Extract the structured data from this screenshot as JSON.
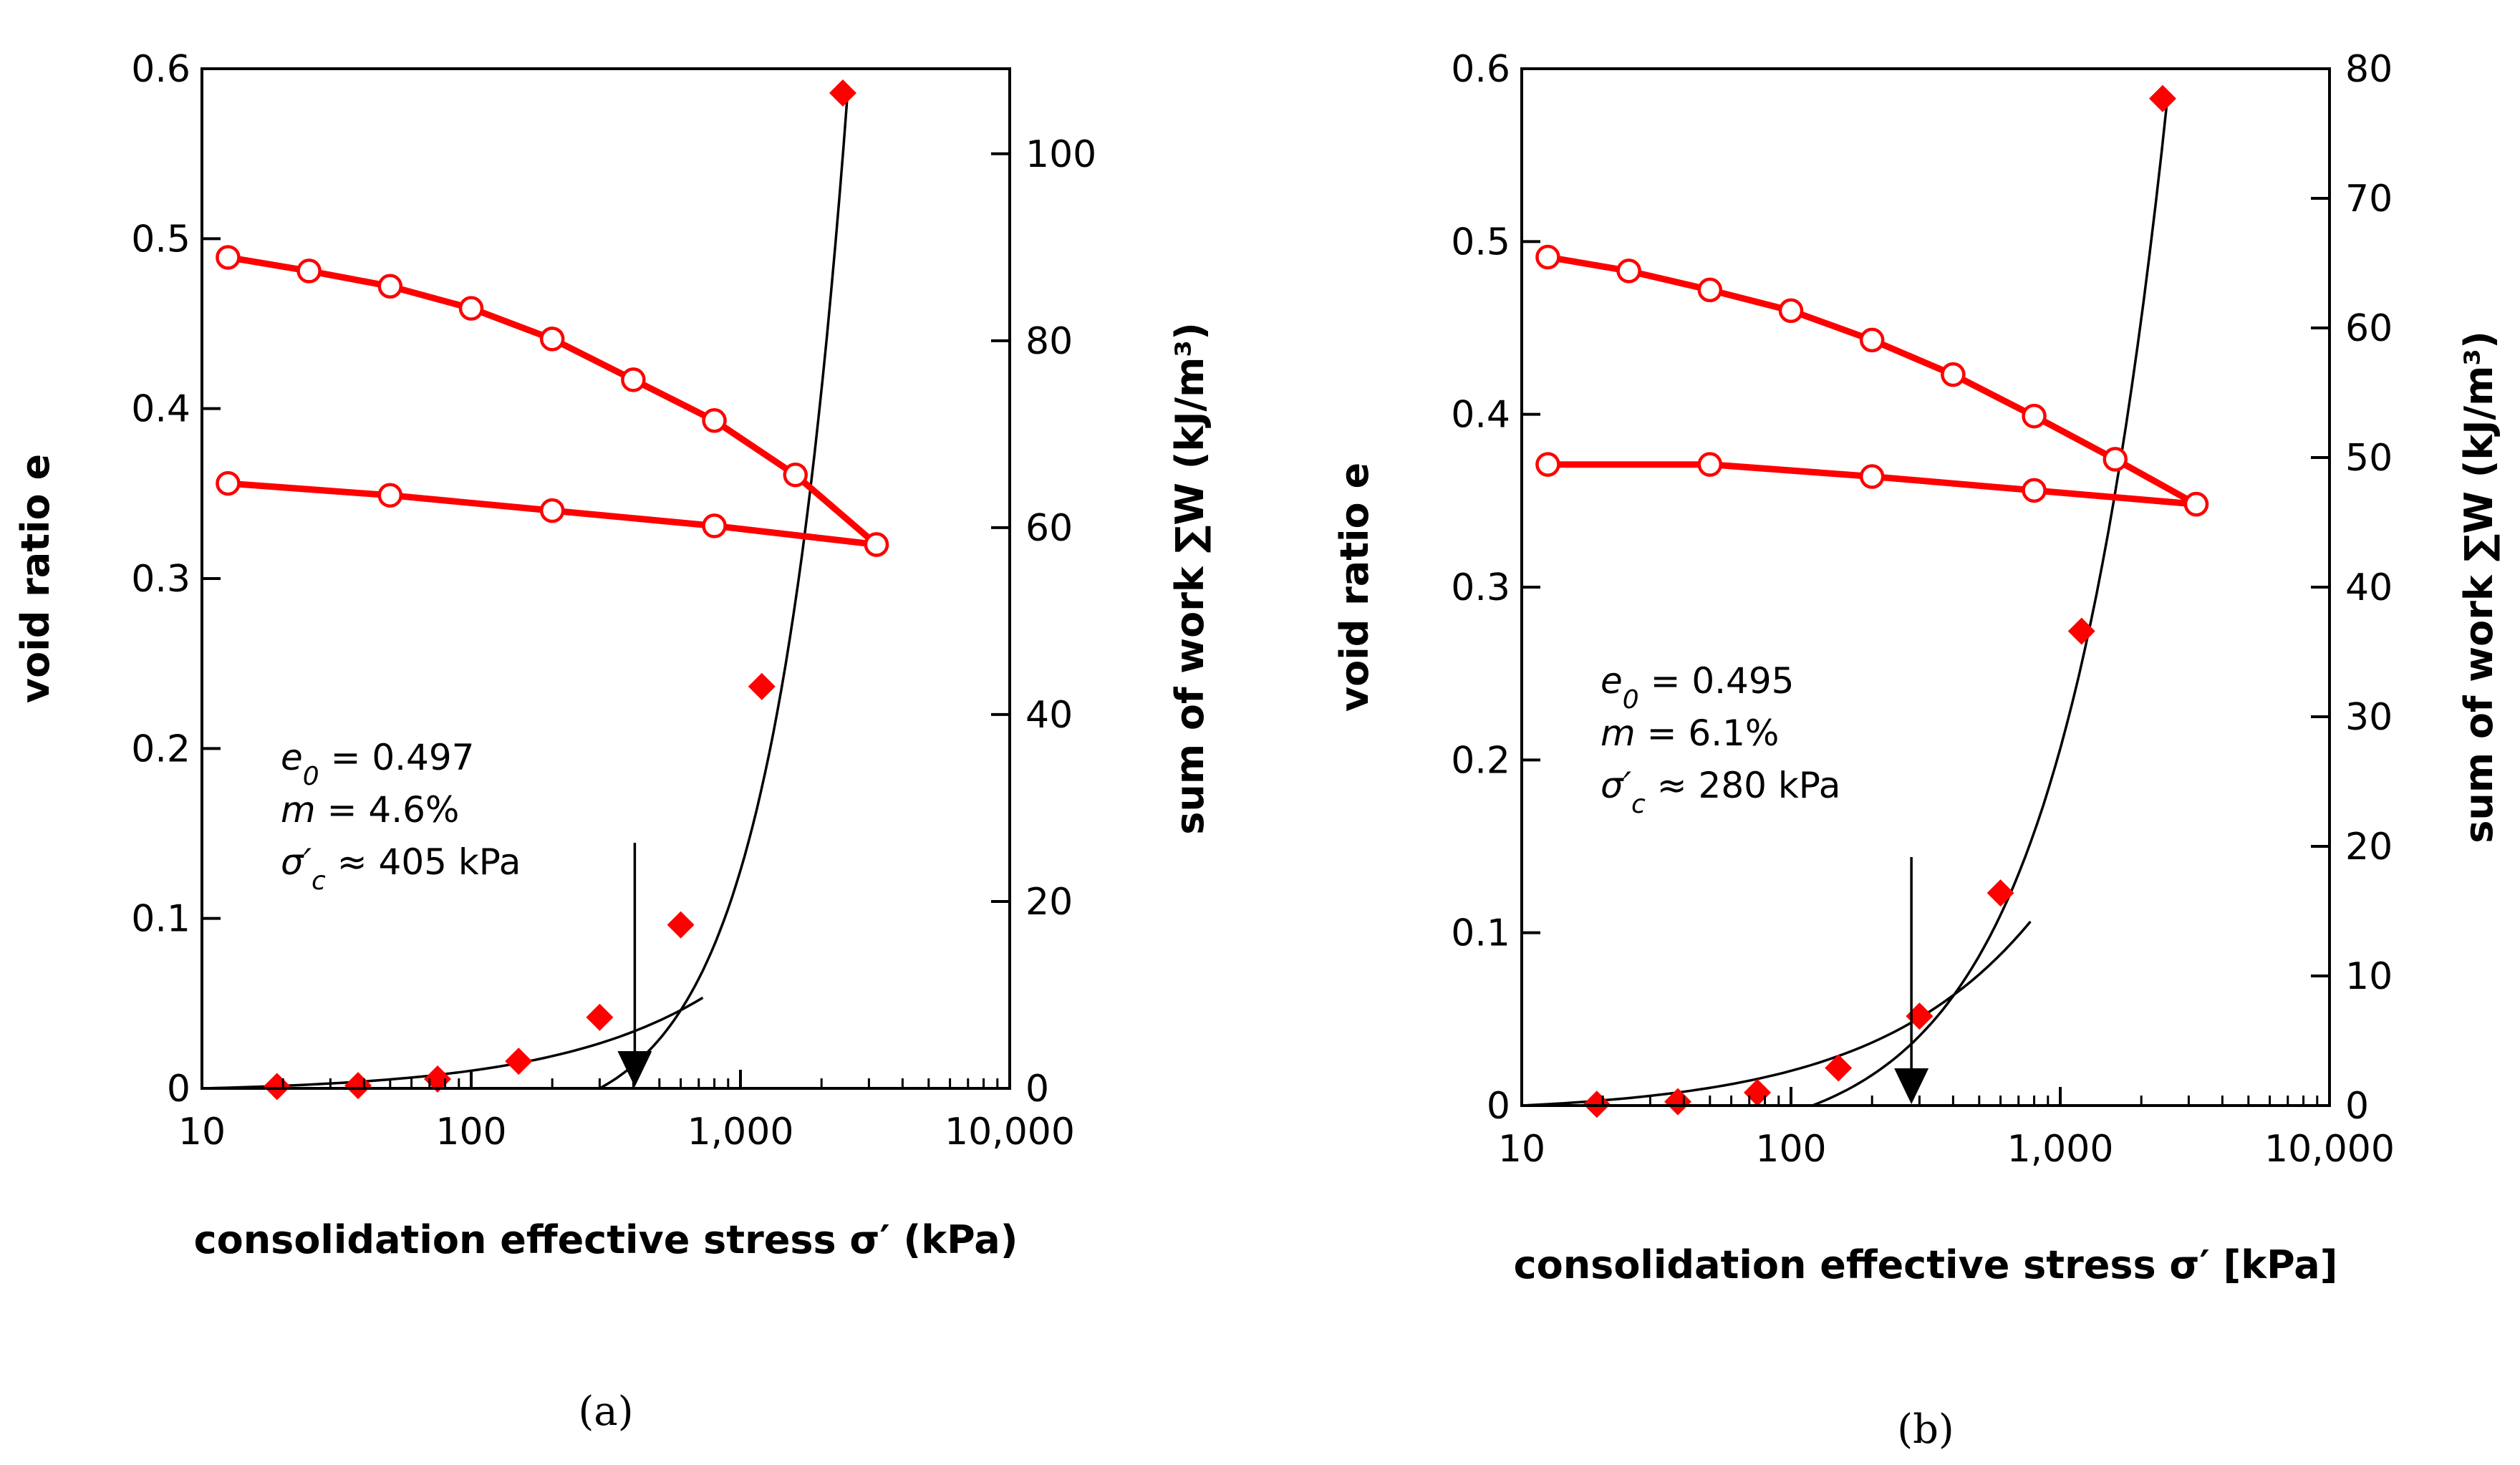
{
  "chart_data": [
    {
      "type": "scatter",
      "caption": "(a)",
      "xlabel": "consolidation effective stress σ′ (kPa)",
      "ylabel_left": "void ratio e",
      "ylabel_right": "sum of work ∑W (kJ/m³)",
      "xscale": "log",
      "xlim": [
        10,
        10000
      ],
      "xticks": [
        10,
        100,
        1000,
        10000
      ],
      "xtick_labels": [
        "10",
        "100",
        "1,000",
        "10,000"
      ],
      "ylim_left": [
        0,
        0.6
      ],
      "yticks_left": [
        0,
        0.1,
        0.2,
        0.3,
        0.4,
        0.5,
        0.6
      ],
      "ytick_labels_left": [
        "0",
        "0.1",
        "0.2",
        "0.3",
        "0.4",
        "0.5",
        "0.6"
      ],
      "ylim_right": [
        0,
        109.1
      ],
      "yticks_right": [
        0,
        20,
        40,
        60,
        80,
        100
      ],
      "ytick_labels_right": [
        "0",
        "20",
        "40",
        "60",
        "80",
        "100"
      ],
      "annotations": [
        "e0 = 0.497",
        "m = 4.6%",
        "σ′c ≈ 405 kPa"
      ],
      "annotation_parts": [
        {
          "sym": "e",
          "sub": "0",
          "rest": " = 0.497"
        },
        {
          "sym": "m",
          "sub": "",
          "rest": " = 4.6%"
        },
        {
          "sym": "σ′",
          "sub": "c",
          "rest": " ≈ 405 kPa"
        }
      ],
      "arrow_x": 405,
      "colors": {
        "series": "#ff0000",
        "fit": "#000000"
      },
      "series": [
        {
          "kind": "void_ratio_loading",
          "axis": "left",
          "x": [
            12.5,
            25,
            50,
            100,
            200,
            400,
            800,
            1600,
            3200
          ],
          "y": [
            0.489,
            0.481,
            0.472,
            0.459,
            0.441,
            0.417,
            0.393,
            0.361,
            0.32
          ]
        },
        {
          "kind": "void_ratio_unloading",
          "axis": "left",
          "x": [
            3200,
            800,
            200,
            50,
            12.5
          ],
          "y": [
            0.32,
            0.331,
            0.34,
            0.349,
            0.356
          ]
        },
        {
          "kind": "sum_of_work",
          "axis": "right",
          "x": [
            19,
            38,
            75,
            150,
            300,
            600,
            1200,
            2400
          ],
          "y": [
            0.2,
            0.3,
            1.0,
            2.9,
            7.6,
            17.5,
            43.0,
            106.5
          ]
        }
      ],
      "fit_low": {
        "x": [
          10,
          725
        ],
        "y_at_10": 0,
        "y_at_max": 9.7
      },
      "fit_high": {
        "x": [
          300,
          2500
        ],
        "y_at_min": 0,
        "y_at_max": 106.5
      }
    },
    {
      "type": "scatter",
      "caption": "(b)",
      "xlabel": "consolidation effective stress σ′ [kPa]",
      "ylabel_left": "void ratio e",
      "ylabel_right": "sum of work ∑W (kJ/m³)",
      "xscale": "log",
      "xlim": [
        10,
        10000
      ],
      "xticks": [
        10,
        100,
        1000,
        10000
      ],
      "xtick_labels": [
        "10",
        "100",
        "1,000",
        "10,000"
      ],
      "ylim_left": [
        0,
        0.6
      ],
      "yticks_left": [
        0,
        0.1,
        0.2,
        0.3,
        0.4,
        0.5,
        0.6
      ],
      "ytick_labels_left": [
        "0",
        "0.1",
        "0.2",
        "0.3",
        "0.4",
        "0.5",
        "0.6"
      ],
      "ylim_right": [
        0,
        80
      ],
      "yticks_right": [
        0,
        10,
        20,
        30,
        40,
        50,
        60,
        70,
        80
      ],
      "ytick_labels_right": [
        "0",
        "10",
        "20",
        "30",
        "40",
        "50",
        "60",
        "70",
        "80"
      ],
      "annotations": [
        "e0 = 0.495",
        "m = 6.1%",
        "σ′c ≈ 280 kPa"
      ],
      "annotation_parts": [
        {
          "sym": "e",
          "sub": "0",
          "rest": " = 0.495"
        },
        {
          "sym": "m",
          "sub": "",
          "rest": " = 6.1%"
        },
        {
          "sym": "σ′",
          "sub": "c",
          "rest": " ≈ 280 kPa"
        }
      ],
      "arrow_x": 280,
      "colors": {
        "series": "#ff0000",
        "fit": "#000000"
      },
      "series": [
        {
          "kind": "void_ratio_loading",
          "axis": "left",
          "x": [
            12.5,
            25,
            50,
            100,
            200,
            400,
            800,
            1600,
            3200
          ],
          "y": [
            0.491,
            0.483,
            0.472,
            0.46,
            0.443,
            0.423,
            0.399,
            0.374,
            0.348
          ]
        },
        {
          "kind": "void_ratio_unloading",
          "axis": "left",
          "x": [
            3200,
            800,
            200,
            50,
            12.5
          ],
          "y": [
            0.348,
            0.356,
            0.364,
            0.371,
            0.371
          ]
        },
        {
          "kind": "sum_of_work",
          "axis": "right",
          "x": [
            19,
            38,
            75,
            150,
            300,
            600,
            1200,
            2400
          ],
          "y": [
            0.1,
            0.3,
            1.0,
            2.9,
            6.9,
            16.4,
            36.6,
            77.7
          ]
        }
      ],
      "fit_low": {
        "x": [
          10,
          775
        ],
        "y_at_10": 0,
        "y_at_max": 14.2
      },
      "fit_high": {
        "x": [
          120,
          2500
        ],
        "y_at_min": 0,
        "y_at_max": 77.7
      }
    }
  ]
}
